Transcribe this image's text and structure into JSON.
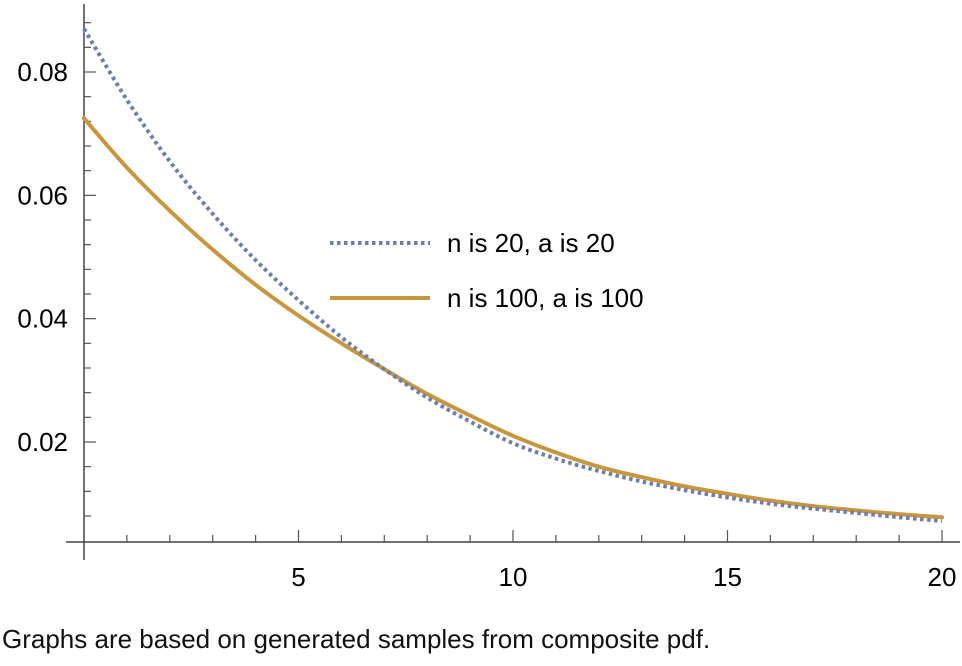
{
  "chart_data": {
    "type": "line",
    "title": "",
    "xlabel": "",
    "ylabel": "",
    "xlim": [
      0,
      20.5
    ],
    "ylim": [
      0.0065,
      0.0935
    ],
    "x_ticks": [
      5,
      10,
      15,
      20
    ],
    "x_tick_labels": [
      "5",
      "10",
      "15",
      "20"
    ],
    "y_ticks": [
      0.02,
      0.04,
      0.06,
      0.08
    ],
    "y_tick_labels": [
      "0.02",
      "0.04",
      "0.06",
      "0.08"
    ],
    "grid": false,
    "legend_position": "center",
    "series": [
      {
        "name": "n is 20, a is 20",
        "color": "#6b7db3",
        "style": "dotted",
        "x": [
          0,
          1,
          2,
          3,
          4,
          5,
          6,
          7,
          8,
          9,
          10,
          11,
          12,
          13,
          14,
          15,
          16,
          17,
          18,
          19,
          20
        ],
        "y": [
          0.087,
          0.0755,
          0.0655,
          0.057,
          0.0495,
          0.043,
          0.037,
          0.0318,
          0.0272,
          0.0233,
          0.0198,
          0.0173,
          0.0153,
          0.0136,
          0.0122,
          0.011,
          0.01,
          0.0092,
          0.0085,
          0.0078,
          0.0072
        ]
      },
      {
        "name": "n is 100, a is 100",
        "color": "#c8963c",
        "style": "solid",
        "x": [
          0,
          1,
          2,
          3,
          4,
          5,
          6,
          7,
          8,
          9,
          10,
          11,
          12,
          13,
          14,
          15,
          16,
          17,
          18,
          19,
          20
        ],
        "y": [
          0.0725,
          0.0645,
          0.0575,
          0.0512,
          0.0455,
          0.0405,
          0.036,
          0.0318,
          0.0278,
          0.0243,
          0.021,
          0.0183,
          0.016,
          0.0143,
          0.0128,
          0.0116,
          0.0105,
          0.0096,
          0.0089,
          0.0083,
          0.0078
        ]
      }
    ]
  },
  "caption": "Graphs are based on generated samples from composite pdf."
}
